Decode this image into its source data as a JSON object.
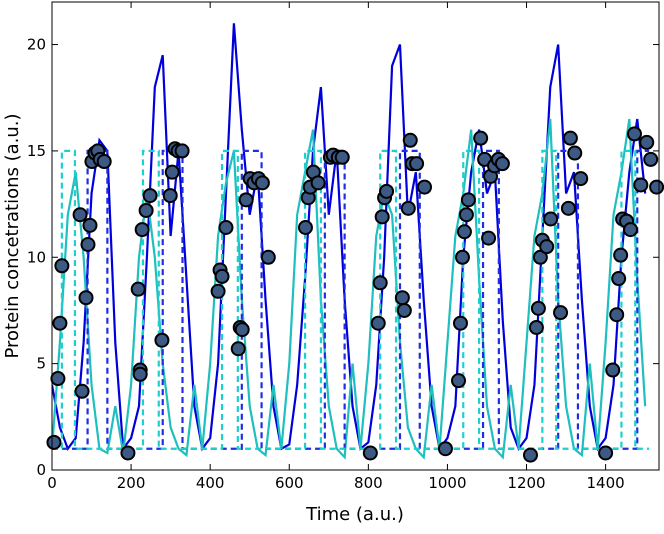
{
  "chart_data": {
    "type": "line",
    "xlabel": "Time (a.u.)",
    "ylabel": "Protein concetrations (a.u.)",
    "xlim": [
      0,
      1535
    ],
    "ylim": [
      0,
      22
    ],
    "xticks": [
      0,
      200,
      400,
      600,
      800,
      1000,
      1200,
      1400
    ],
    "yticks": [
      0,
      5,
      10,
      15,
      20
    ],
    "series": [
      {
        "type": "line",
        "style": "solid",
        "color": "#0000dd",
        "x": [
          0,
          20,
          40,
          60,
          80,
          100,
          120,
          140,
          160,
          180,
          200,
          220,
          240,
          260,
          280,
          300,
          320,
          340,
          360,
          380,
          400,
          420,
          440,
          460,
          480,
          500,
          520,
          540,
          560,
          580,
          600,
          620,
          640,
          660,
          680,
          700,
          720,
          740,
          760,
          780,
          800,
          820,
          840,
          860,
          880,
          900,
          920,
          940,
          960,
          980,
          1000,
          1020,
          1040,
          1060,
          1080,
          1100,
          1120,
          1140,
          1160,
          1180,
          1200,
          1220,
          1240,
          1260,
          1280,
          1300,
          1320,
          1340,
          1360,
          1380,
          1400,
          1420,
          1440,
          1460,
          1480,
          1500
        ],
        "values": [
          4,
          2,
          1,
          1.5,
          6,
          13,
          15.5,
          15,
          6,
          1,
          1.5,
          3,
          10,
          18,
          19.5,
          11,
          15,
          9,
          3,
          1,
          1.5,
          5,
          13,
          21,
          16,
          12,
          14,
          8,
          3,
          1,
          1.2,
          4,
          9,
          15,
          18,
          12,
          15,
          8,
          3,
          1,
          1.3,
          4,
          10,
          19,
          20,
          12,
          14,
          8,
          3,
          1,
          1.5,
          3,
          10,
          14,
          16,
          13,
          14,
          7,
          2,
          1,
          1.5,
          4,
          11,
          18,
          20,
          13,
          14,
          8,
          3,
          1,
          1.5,
          4,
          10,
          14,
          16.5,
          13
        ]
      },
      {
        "type": "line",
        "style": "solid",
        "color": "#1fbfbf",
        "x": [
          0,
          20,
          40,
          60,
          80,
          100,
          120,
          140,
          160,
          180,
          200,
          220,
          240,
          260,
          280,
          300,
          320,
          340,
          360,
          380,
          400,
          420,
          440,
          460,
          480,
          500,
          520,
          540,
          560,
          580,
          600,
          620,
          640,
          660,
          680,
          700,
          720,
          740,
          760,
          780,
          800,
          820,
          840,
          860,
          880,
          900,
          920,
          940,
          960,
          980,
          1000,
          1020,
          1040,
          1060,
          1080,
          1100,
          1120,
          1140,
          1160,
          1180,
          1200,
          1220,
          1240,
          1260,
          1280,
          1300,
          1320,
          1340,
          1360,
          1380,
          1400,
          1420,
          1440,
          1460,
          1480,
          1500
        ],
        "values": [
          1,
          6,
          12,
          14,
          10,
          4,
          1,
          0.8,
          3,
          0.8,
          4,
          10,
          13,
          10,
          5,
          2,
          1,
          0.7,
          4,
          1,
          5,
          11,
          13.5,
          15,
          8,
          3,
          1,
          0.7,
          4,
          1,
          5,
          12,
          14,
          16,
          8,
          3,
          1,
          0.6,
          5,
          1,
          5,
          11,
          13,
          12,
          6,
          2,
          1,
          0.6,
          4,
          1,
          6,
          11,
          13,
          16,
          9,
          3,
          1,
          0.6,
          4,
          1,
          6,
          11,
          13,
          16.5,
          8,
          3,
          1,
          0.7,
          5,
          1,
          6,
          12,
          14,
          16.5,
          9,
          3
        ]
      },
      {
        "type": "line",
        "style": "dashed",
        "color": "#1f2fe0",
        "x": [
          0,
          90,
          90,
          140,
          140,
          280,
          280,
          330,
          330,
          480,
          480,
          530,
          530,
          690,
          690,
          740,
          740,
          880,
          880,
          930,
          930,
          1090,
          1090,
          1130,
          1130,
          1280,
          1280,
          1330,
          1330,
          1480,
          1480,
          1510
        ],
        "values": [
          1,
          1,
          15,
          15,
          1,
          1,
          15,
          15,
          1,
          1,
          15,
          15,
          1,
          1,
          15,
          15,
          1,
          1,
          15,
          15,
          1,
          1,
          15,
          15,
          1,
          1,
          15,
          15,
          1,
          1,
          15,
          15
        ]
      },
      {
        "type": "line",
        "style": "dashed",
        "color": "#1fcfcf",
        "x": [
          0,
          25,
          25,
          58,
          58,
          230,
          230,
          270,
          270,
          430,
          430,
          470,
          470,
          640,
          640,
          680,
          680,
          830,
          830,
          870,
          870,
          1040,
          1040,
          1080,
          1080,
          1240,
          1240,
          1275,
          1275,
          1440,
          1440,
          1475,
          1475,
          1510
        ],
        "values": [
          1,
          1,
          15,
          15,
          1,
          1,
          15,
          15,
          1,
          1,
          15,
          15,
          1,
          1,
          15,
          15,
          1,
          1,
          15,
          15,
          1,
          1,
          15,
          15,
          1,
          1,
          15,
          15,
          1,
          1,
          15,
          15,
          1,
          1
        ]
      },
      {
        "type": "scatter",
        "color": "#3d5a85",
        "x": [
          5,
          15,
          20,
          25,
          71,
          76,
          86,
          91,
          96,
          101,
          109,
          116,
          122,
          132,
          192,
          218,
          223,
          223,
          228,
          238,
          248,
          278,
          299,
          304,
          311,
          319,
          329,
          420,
          425,
          430,
          440,
          471,
          476,
          481,
          491,
          501,
          511,
          522,
          532,
          547,
          641,
          648,
          653,
          661,
          673,
          704,
          711,
          724,
          734,
          805,
          825,
          830,
          835,
          841,
          846,
          886,
          891,
          901,
          906,
          911,
          922,
          942,
          995,
          1028,
          1033,
          1038,
          1043,
          1048,
          1053,
          1084,
          1094,
          1104,
          1109,
          1119,
          1129,
          1139,
          1210,
          1225,
          1230,
          1235,
          1240,
          1251,
          1261,
          1286,
          1306,
          1311,
          1322,
          1337,
          1400,
          1418,
          1428,
          1433,
          1438,
          1443,
          1453,
          1463,
          1473,
          1489,
          1504,
          1514,
          1529
        ],
        "values": [
          1.3,
          4.3,
          6.9,
          9.6,
          12,
          3.7,
          8.1,
          10.6,
          11.5,
          14.5,
          14.9,
          15,
          14.6,
          14.5,
          0.8,
          8.5,
          4.7,
          4.5,
          11.3,
          12.2,
          12.9,
          6.1,
          12.9,
          14,
          15.1,
          15,
          15,
          8.4,
          9.4,
          9.1,
          11.4,
          5.7,
          6.7,
          6.6,
          12.7,
          13.7,
          13.5,
          13.7,
          13.5,
          10,
          11.4,
          12.8,
          13.3,
          14,
          13.5,
          14.7,
          14.8,
          14.7,
          14.7,
          0.8,
          6.9,
          8.8,
          11.9,
          12.8,
          13.1,
          8.1,
          7.5,
          12.3,
          15.5,
          14.4,
          14.4,
          13.3,
          1,
          4.2,
          6.9,
          10,
          11.2,
          12,
          12.7,
          15.6,
          14.6,
          10.9,
          13.8,
          14.3,
          14.6,
          14.4,
          0.7,
          6.7,
          7.6,
          10,
          10.8,
          10.5,
          11.8,
          7.4,
          12.3,
          15.6,
          14.9,
          13.7,
          0.8,
          4.7,
          7.3,
          9,
          10.1,
          11.8,
          11.7,
          11.3,
          15.8,
          13.4,
          15.4,
          14.6,
          13.3
        ]
      }
    ]
  }
}
